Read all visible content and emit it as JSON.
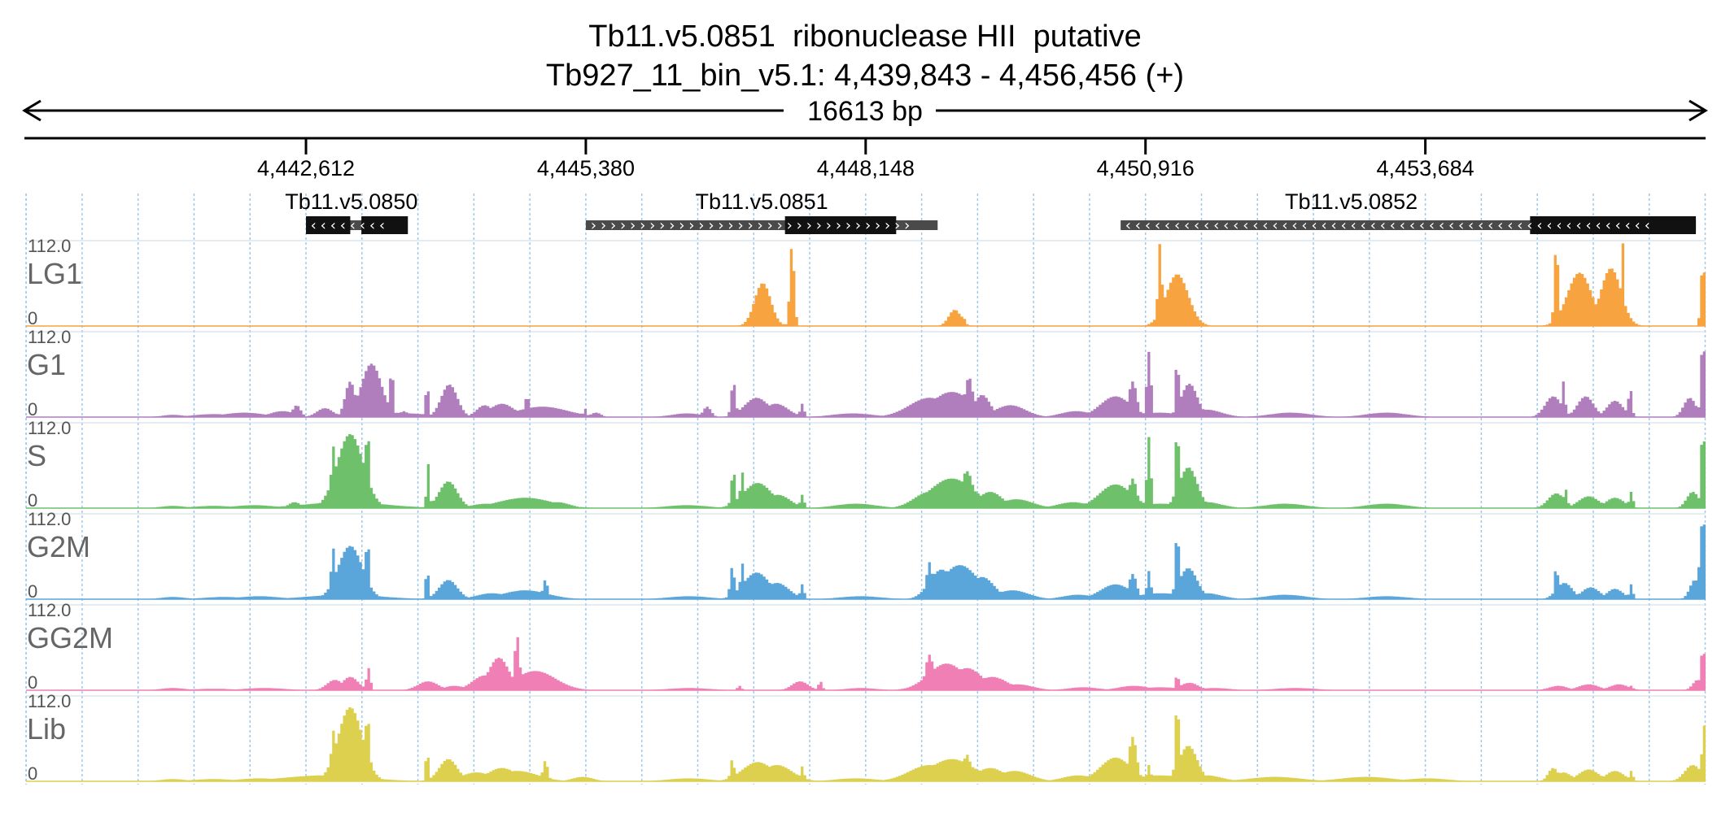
{
  "title": {
    "gene": "Tb11.v5.0851  ribonuclease HII  putative",
    "locus": "Tb927_11_bin_v5.1: 4,439,843 - 4,456,456 (+)"
  },
  "chart_data": {
    "type": "area",
    "region": {
      "chromosome": "Tb927_11_bin_v5.1",
      "start": 4439843,
      "end": 4456456,
      "strand": "+",
      "span_label": "16613 bp"
    },
    "xaxis": {
      "ticks": [
        4442612,
        4445380,
        4448148,
        4450916,
        4453684
      ],
      "tick_labels": [
        "4,442,612",
        "4,445,380",
        "4,448,148",
        "4,450,916",
        "4,453,684"
      ]
    },
    "genes": [
      {
        "name": "Tb11.v5.0850",
        "start": 4442612,
        "end": 4443510,
        "strand": "-",
        "cds": [
          [
            4442612,
            4443050
          ],
          [
            4443160,
            4443620
          ]
        ]
      },
      {
        "name": "Tb11.v5.0851",
        "start": 4445380,
        "end": 4448860,
        "strand": "+",
        "cds": [
          [
            4447350,
            4448450
          ]
        ]
      },
      {
        "name": "Tb11.v5.0852",
        "start": 4450670,
        "end": 4456360,
        "strand": "-",
        "cds": [
          [
            4454720,
            4456360
          ]
        ]
      }
    ],
    "ylim": [
      0,
      112
    ],
    "max_label": "112.0",
    "min_label": "0",
    "tracks": [
      {
        "name": "LG1",
        "color": "#f7a340",
        "peaks": [
          [
            4446820,
            30,
            0
          ],
          [
            4447130,
            80,
            58
          ],
          [
            4447320,
            30,
            0
          ],
          [
            4447420,
            22,
            110
          ],
          [
            4447720,
            32,
            0
          ],
          [
            4449030,
            60,
            22
          ],
          [
            4449110,
            20,
            14
          ],
          [
            4451060,
            20,
            112
          ],
          [
            4451230,
            110,
            70
          ],
          [
            4454980,
            20,
            112
          ],
          [
            4455210,
            120,
            72
          ],
          [
            4455520,
            100,
            78
          ],
          [
            4455640,
            15,
            112
          ],
          [
            4456430,
            20,
            88
          ]
        ]
      },
      {
        "name": "G1",
        "color": "#b07dbd",
        "peaks": [
          [
            4441300,
            110,
            3
          ],
          [
            4441700,
            200,
            4
          ],
          [
            4442000,
            200,
            6
          ],
          [
            4442380,
            120,
            8
          ],
          [
            4442520,
            40,
            16
          ],
          [
            4442800,
            80,
            12
          ],
          [
            4443050,
            50,
            48
          ],
          [
            4443260,
            100,
            72
          ],
          [
            4443460,
            15,
            76
          ],
          [
            4443580,
            40,
            8
          ],
          [
            4443400,
            400,
            6
          ],
          [
            4443810,
            15,
            48
          ],
          [
            4444030,
            80,
            44
          ],
          [
            4444380,
            80,
            16
          ],
          [
            4444550,
            120,
            18
          ],
          [
            4444800,
            25,
            28
          ],
          [
            4444950,
            250,
            14
          ],
          [
            4445370,
            15,
            12
          ],
          [
            4445480,
            50,
            6
          ],
          [
            4446380,
            150,
            5
          ],
          [
            4446580,
            40,
            14
          ],
          [
            4446840,
            22,
            48
          ],
          [
            4447070,
            120,
            26
          ],
          [
            4447260,
            120,
            18
          ],
          [
            4447520,
            20,
            18
          ],
          [
            4448020,
            200,
            5
          ],
          [
            4448780,
            200,
            26
          ],
          [
            4449000,
            200,
            34
          ],
          [
            4449170,
            40,
            54
          ],
          [
            4449300,
            80,
            30
          ],
          [
            4449580,
            150,
            16
          ],
          [
            4450230,
            150,
            8
          ],
          [
            4450620,
            150,
            28
          ],
          [
            4450790,
            40,
            48
          ],
          [
            4450950,
            22,
            88
          ],
          [
            4451050,
            200,
            6
          ],
          [
            4451230,
            15,
            90
          ],
          [
            4451350,
            80,
            45
          ],
          [
            4451520,
            150,
            10
          ],
          [
            4452350,
            200,
            6
          ],
          [
            4453300,
            200,
            6
          ],
          [
            4454950,
            80,
            28
          ],
          [
            4455050,
            18,
            48
          ],
          [
            4455270,
            80,
            28
          ],
          [
            4455560,
            80,
            22
          ],
          [
            4455710,
            18,
            40
          ],
          [
            4456430,
            20,
            108
          ],
          [
            4456300,
            60,
            26
          ]
        ]
      },
      {
        "name": "S",
        "color": "#6ec06a",
        "peaks": [
          [
            4441300,
            120,
            3
          ],
          [
            4441700,
            200,
            3
          ],
          [
            4442100,
            200,
            4
          ],
          [
            4442500,
            60,
            8
          ],
          [
            4442880,
            20,
            85
          ],
          [
            4443050,
            130,
            100
          ],
          [
            4443220,
            20,
            110
          ],
          [
            4443000,
            400,
            8
          ],
          [
            4443820,
            15,
            60
          ],
          [
            4444020,
            90,
            36
          ],
          [
            4444400,
            150,
            6
          ],
          [
            4444780,
            260,
            14
          ],
          [
            4445100,
            120,
            8
          ],
          [
            4446380,
            200,
            4
          ],
          [
            4446840,
            22,
            50
          ],
          [
            4446930,
            22,
            48
          ],
          [
            4447080,
            140,
            34
          ],
          [
            4447280,
            120,
            18
          ],
          [
            4447520,
            20,
            18
          ],
          [
            4448050,
            200,
            6
          ],
          [
            4448780,
            150,
            22
          ],
          [
            4449000,
            220,
            40
          ],
          [
            4449150,
            60,
            50
          ],
          [
            4449380,
            120,
            22
          ],
          [
            4449640,
            160,
            12
          ],
          [
            4450200,
            150,
            8
          ],
          [
            4450620,
            160,
            32
          ],
          [
            4450790,
            40,
            40
          ],
          [
            4450950,
            20,
            96
          ],
          [
            4451060,
            250,
            6
          ],
          [
            4451230,
            20,
            108
          ],
          [
            4451340,
            90,
            55
          ],
          [
            4451520,
            150,
            8
          ],
          [
            4452300,
            200,
            6
          ],
          [
            4453300,
            200,
            6
          ],
          [
            4454980,
            80,
            20
          ],
          [
            4455070,
            20,
            26
          ],
          [
            4455300,
            100,
            16
          ],
          [
            4455560,
            90,
            14
          ],
          [
            4455720,
            20,
            22
          ],
          [
            4456430,
            20,
            110
          ],
          [
            4456330,
            60,
            22
          ]
        ]
      },
      {
        "name": "G2M",
        "color": "#5aa6da",
        "peaks": [
          [
            4441300,
            120,
            3
          ],
          [
            4441800,
            200,
            3
          ],
          [
            4442150,
            200,
            4
          ],
          [
            4442880,
            20,
            70
          ],
          [
            4443050,
            120,
            72
          ],
          [
            4443220,
            20,
            82
          ],
          [
            4443000,
            350,
            6
          ],
          [
            4443810,
            15,
            44
          ],
          [
            4444020,
            90,
            26
          ],
          [
            4444450,
            150,
            8
          ],
          [
            4444780,
            220,
            12
          ],
          [
            4444980,
            25,
            26
          ],
          [
            4446400,
            200,
            4
          ],
          [
            4446830,
            22,
            44
          ],
          [
            4446930,
            22,
            48
          ],
          [
            4447070,
            130,
            36
          ],
          [
            4447270,
            120,
            22
          ],
          [
            4447520,
            20,
            20
          ],
          [
            4448100,
            200,
            4
          ],
          [
            4448780,
            30,
            50
          ],
          [
            4448900,
            120,
            40
          ],
          [
            4449080,
            180,
            46
          ],
          [
            4449300,
            120,
            30
          ],
          [
            4449600,
            160,
            12
          ],
          [
            4450250,
            150,
            6
          ],
          [
            4450620,
            150,
            20
          ],
          [
            4450790,
            40,
            34
          ],
          [
            4450950,
            20,
            38
          ],
          [
            4451070,
            240,
            8
          ],
          [
            4451230,
            20,
            92
          ],
          [
            4451340,
            90,
            42
          ],
          [
            4451520,
            150,
            8
          ],
          [
            4452300,
            200,
            6
          ],
          [
            4453300,
            200,
            4
          ],
          [
            4454980,
            20,
            44
          ],
          [
            4455060,
            80,
            22
          ],
          [
            4455320,
            90,
            16
          ],
          [
            4455560,
            80,
            14
          ],
          [
            4455720,
            18,
            20
          ],
          [
            4456430,
            30,
            110
          ],
          [
            4456350,
            50,
            26
          ]
        ]
      },
      {
        "name": "GG2M",
        "color": "#ef7fb4",
        "peaks": [
          [
            4441300,
            120,
            3
          ],
          [
            4441700,
            200,
            2
          ],
          [
            4442200,
            200,
            3
          ],
          [
            4442900,
            80,
            14
          ],
          [
            4443050,
            80,
            18
          ],
          [
            4443230,
            20,
            30
          ],
          [
            4443820,
            100,
            12
          ],
          [
            4444080,
            100,
            6
          ],
          [
            4444380,
            120,
            20
          ],
          [
            4444520,
            100,
            44
          ],
          [
            4444700,
            25,
            74
          ],
          [
            4444880,
            200,
            26
          ],
          [
            4445050,
            100,
            12
          ],
          [
            4446400,
            200,
            3
          ],
          [
            4446900,
            20,
            6
          ],
          [
            4447500,
            80,
            12
          ],
          [
            4447700,
            20,
            12
          ],
          [
            4448100,
            150,
            3
          ],
          [
            4448780,
            40,
            48
          ],
          [
            4448950,
            180,
            36
          ],
          [
            4449150,
            150,
            30
          ],
          [
            4449400,
            150,
            18
          ],
          [
            4449650,
            150,
            8
          ],
          [
            4450300,
            150,
            4
          ],
          [
            4450800,
            150,
            6
          ],
          [
            4451060,
            200,
            4
          ],
          [
            4451230,
            15,
            24
          ],
          [
            4451350,
            90,
            10
          ],
          [
            4451600,
            150,
            3
          ],
          [
            4452400,
            200,
            3
          ],
          [
            4455000,
            90,
            6
          ],
          [
            4455300,
            100,
            8
          ],
          [
            4455600,
            90,
            8
          ],
          [
            4455720,
            20,
            6
          ],
          [
            4456430,
            20,
            60
          ],
          [
            4456380,
            50,
            14
          ]
        ]
      },
      {
        "name": "Lib",
        "color": "#dcd04e",
        "peaks": [
          [
            4441300,
            120,
            3
          ],
          [
            4441700,
            200,
            3
          ],
          [
            4442150,
            200,
            4
          ],
          [
            4442500,
            80,
            6
          ],
          [
            4442880,
            20,
            70
          ],
          [
            4443050,
            120,
            100
          ],
          [
            4443220,
            25,
            88
          ],
          [
            4442800,
            400,
            8
          ],
          [
            4443810,
            15,
            44
          ],
          [
            4444020,
            90,
            30
          ],
          [
            4444300,
            150,
            12
          ],
          [
            4444550,
            140,
            18
          ],
          [
            4444700,
            200,
            14
          ],
          [
            4444980,
            25,
            28
          ],
          [
            4445350,
            100,
            6
          ],
          [
            4446400,
            200,
            4
          ],
          [
            4446830,
            20,
            30
          ],
          [
            4447080,
            150,
            26
          ],
          [
            4447270,
            150,
            22
          ],
          [
            4447520,
            20,
            20
          ],
          [
            4448050,
            200,
            4
          ],
          [
            4448780,
            200,
            22
          ],
          [
            4449000,
            220,
            30
          ],
          [
            4449150,
            40,
            36
          ],
          [
            4449380,
            140,
            18
          ],
          [
            4449620,
            160,
            14
          ],
          [
            4450250,
            150,
            8
          ],
          [
            4450620,
            150,
            32
          ],
          [
            4450790,
            40,
            60
          ],
          [
            4450950,
            20,
            22
          ],
          [
            4451060,
            250,
            8
          ],
          [
            4451230,
            20,
            108
          ],
          [
            4451340,
            90,
            48
          ],
          [
            4451520,
            150,
            8
          ],
          [
            4452200,
            250,
            6
          ],
          [
            4453100,
            250,
            6
          ],
          [
            4453700,
            200,
            4
          ],
          [
            4454950,
            50,
            18
          ],
          [
            4455050,
            80,
            12
          ],
          [
            4455300,
            100,
            16
          ],
          [
            4455560,
            90,
            14
          ],
          [
            4455720,
            20,
            14
          ],
          [
            4456440,
            20,
            76
          ],
          [
            4456330,
            80,
            22
          ]
        ]
      }
    ],
    "colors": {
      "gene_cds": "#111111",
      "gene_utr": "#4a4a4a",
      "grid": "#9ec8ea"
    }
  }
}
